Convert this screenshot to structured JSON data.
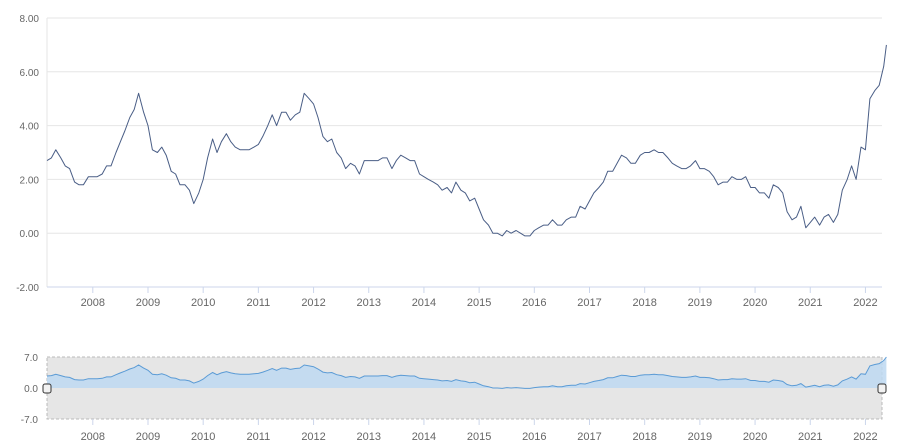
{
  "chart_data": [
    {
      "type": "line",
      "title": "",
      "xlabel": "",
      "ylabel": "",
      "ylim": [
        -2,
        8
      ],
      "grid": true,
      "color": "#4a5e86",
      "y_ticks": [
        "8.00",
        "6.00",
        "4.00",
        "2.00",
        "0.00",
        "-2.00"
      ],
      "y_tick_values": [
        8,
        6,
        4,
        2,
        0,
        -2
      ],
      "x_ticks": [
        "2008",
        "2009",
        "2010",
        "2011",
        "2012",
        "2013",
        "2014",
        "2015",
        "2016",
        "2017",
        "2018",
        "2019",
        "2020",
        "2021",
        "2022"
      ],
      "x_tick_values": [
        2008,
        2009,
        2010,
        2011,
        2012,
        2013,
        2014,
        2015,
        2016,
        2017,
        2018,
        2019,
        2020,
        2021,
        2022
      ],
      "xlim": [
        2007.17,
        2022.3
      ],
      "points": [
        [
          2007.17,
          2.7
        ],
        [
          2007.25,
          2.8
        ],
        [
          2007.33,
          3.1
        ],
        [
          2007.42,
          2.8
        ],
        [
          2007.5,
          2.5
        ],
        [
          2007.58,
          2.4
        ],
        [
          2007.67,
          1.9
        ],
        [
          2007.75,
          1.8
        ],
        [
          2007.83,
          1.8
        ],
        [
          2007.92,
          2.1
        ],
        [
          2008.0,
          2.1
        ],
        [
          2008.08,
          2.1
        ],
        [
          2008.17,
          2.2
        ],
        [
          2008.25,
          2.5
        ],
        [
          2008.33,
          2.5
        ],
        [
          2008.42,
          3.0
        ],
        [
          2008.5,
          3.4
        ],
        [
          2008.58,
          3.8
        ],
        [
          2008.67,
          4.3
        ],
        [
          2008.75,
          4.6
        ],
        [
          2008.83,
          5.2
        ],
        [
          2008.92,
          4.5
        ],
        [
          2009.0,
          4.0
        ],
        [
          2009.08,
          3.1
        ],
        [
          2009.17,
          3.0
        ],
        [
          2009.25,
          3.2
        ],
        [
          2009.33,
          2.9
        ],
        [
          2009.42,
          2.3
        ],
        [
          2009.5,
          2.2
        ],
        [
          2009.58,
          1.8
        ],
        [
          2009.67,
          1.8
        ],
        [
          2009.75,
          1.6
        ],
        [
          2009.83,
          1.1
        ],
        [
          2009.92,
          1.5
        ],
        [
          2010.0,
          2.0
        ],
        [
          2010.08,
          2.8
        ],
        [
          2010.17,
          3.5
        ],
        [
          2010.25,
          3.0
        ],
        [
          2010.33,
          3.4
        ],
        [
          2010.42,
          3.7
        ],
        [
          2010.5,
          3.4
        ],
        [
          2010.58,
          3.2
        ],
        [
          2010.67,
          3.1
        ],
        [
          2010.75,
          3.1
        ],
        [
          2010.83,
          3.1
        ],
        [
          2010.92,
          3.2
        ],
        [
          2011.0,
          3.3
        ],
        [
          2011.08,
          3.6
        ],
        [
          2011.17,
          4.0
        ],
        [
          2011.25,
          4.4
        ],
        [
          2011.33,
          4.0
        ],
        [
          2011.42,
          4.5
        ],
        [
          2011.5,
          4.5
        ],
        [
          2011.58,
          4.2
        ],
        [
          2011.67,
          4.4
        ],
        [
          2011.75,
          4.5
        ],
        [
          2011.83,
          5.2
        ],
        [
          2011.92,
          5.0
        ],
        [
          2012.0,
          4.8
        ],
        [
          2012.08,
          4.3
        ],
        [
          2012.17,
          3.6
        ],
        [
          2012.25,
          3.4
        ],
        [
          2012.33,
          3.5
        ],
        [
          2012.42,
          3.0
        ],
        [
          2012.5,
          2.8
        ],
        [
          2012.58,
          2.4
        ],
        [
          2012.67,
          2.6
        ],
        [
          2012.75,
          2.5
        ],
        [
          2012.83,
          2.2
        ],
        [
          2012.92,
          2.7
        ],
        [
          2013.0,
          2.7
        ],
        [
          2013.08,
          2.7
        ],
        [
          2013.17,
          2.7
        ],
        [
          2013.25,
          2.8
        ],
        [
          2013.33,
          2.8
        ],
        [
          2013.42,
          2.4
        ],
        [
          2013.5,
          2.7
        ],
        [
          2013.58,
          2.9
        ],
        [
          2013.67,
          2.8
        ],
        [
          2013.75,
          2.7
        ],
        [
          2013.83,
          2.7
        ],
        [
          2013.92,
          2.2
        ],
        [
          2014.0,
          2.1
        ],
        [
          2014.08,
          2.0
        ],
        [
          2014.17,
          1.9
        ],
        [
          2014.25,
          1.8
        ],
        [
          2014.33,
          1.6
        ],
        [
          2014.42,
          1.7
        ],
        [
          2014.5,
          1.5
        ],
        [
          2014.58,
          1.9
        ],
        [
          2014.67,
          1.6
        ],
        [
          2014.75,
          1.5
        ],
        [
          2014.83,
          1.2
        ],
        [
          2014.92,
          1.3
        ],
        [
          2015.0,
          0.9
        ],
        [
          2015.08,
          0.5
        ],
        [
          2015.17,
          0.3
        ],
        [
          2015.25,
          0.0
        ],
        [
          2015.33,
          0.0
        ],
        [
          2015.42,
          -0.1
        ],
        [
          2015.5,
          0.1
        ],
        [
          2015.58,
          0.0
        ],
        [
          2015.67,
          0.1
        ],
        [
          2015.75,
          0.0
        ],
        [
          2015.83,
          -0.1
        ],
        [
          2015.92,
          -0.1
        ],
        [
          2016.0,
          0.1
        ],
        [
          2016.08,
          0.2
        ],
        [
          2016.17,
          0.3
        ],
        [
          2016.25,
          0.3
        ],
        [
          2016.33,
          0.5
        ],
        [
          2016.42,
          0.3
        ],
        [
          2016.5,
          0.3
        ],
        [
          2016.58,
          0.5
        ],
        [
          2016.67,
          0.6
        ],
        [
          2016.75,
          0.6
        ],
        [
          2016.83,
          1.0
        ],
        [
          2016.92,
          0.9
        ],
        [
          2017.0,
          1.2
        ],
        [
          2017.08,
          1.5
        ],
        [
          2017.17,
          1.7
        ],
        [
          2017.25,
          1.9
        ],
        [
          2017.33,
          2.3
        ],
        [
          2017.42,
          2.3
        ],
        [
          2017.5,
          2.6
        ],
        [
          2017.58,
          2.9
        ],
        [
          2017.67,
          2.8
        ],
        [
          2017.75,
          2.6
        ],
        [
          2017.83,
          2.6
        ],
        [
          2017.92,
          2.9
        ],
        [
          2018.0,
          3.0
        ],
        [
          2018.08,
          3.0
        ],
        [
          2018.17,
          3.1
        ],
        [
          2018.25,
          3.0
        ],
        [
          2018.33,
          3.0
        ],
        [
          2018.42,
          2.8
        ],
        [
          2018.5,
          2.6
        ],
        [
          2018.58,
          2.5
        ],
        [
          2018.67,
          2.4
        ],
        [
          2018.75,
          2.4
        ],
        [
          2018.83,
          2.5
        ],
        [
          2018.92,
          2.7
        ],
        [
          2019.0,
          2.4
        ],
        [
          2019.08,
          2.4
        ],
        [
          2019.17,
          2.3
        ],
        [
          2019.25,
          2.1
        ],
        [
          2019.33,
          1.8
        ],
        [
          2019.42,
          1.9
        ],
        [
          2019.5,
          1.9
        ],
        [
          2019.58,
          2.1
        ],
        [
          2019.67,
          2.0
        ],
        [
          2019.75,
          2.0
        ],
        [
          2019.83,
          2.1
        ],
        [
          2019.92,
          1.7
        ],
        [
          2020.0,
          1.7
        ],
        [
          2020.08,
          1.5
        ],
        [
          2020.17,
          1.5
        ],
        [
          2020.25,
          1.3
        ],
        [
          2020.33,
          1.8
        ],
        [
          2020.42,
          1.7
        ],
        [
          2020.5,
          1.5
        ],
        [
          2020.58,
          0.8
        ],
        [
          2020.67,
          0.5
        ],
        [
          2020.75,
          0.6
        ],
        [
          2020.83,
          1.0
        ],
        [
          2020.92,
          0.2
        ],
        [
          2021.0,
          0.4
        ],
        [
          2021.08,
          0.6
        ],
        [
          2021.17,
          0.3
        ],
        [
          2021.25,
          0.6
        ],
        [
          2021.33,
          0.7
        ],
        [
          2021.42,
          0.4
        ],
        [
          2021.5,
          0.7
        ],
        [
          2021.58,
          1.6
        ],
        [
          2021.67,
          2.0
        ],
        [
          2021.75,
          2.5
        ],
        [
          2021.83,
          2.0
        ],
        [
          2021.92,
          3.2
        ],
        [
          2022.0,
          3.1
        ],
        [
          2022.08,
          5.0
        ],
        [
          2022.17,
          5.3
        ],
        [
          2022.25,
          5.5
        ],
        [
          2022.33,
          6.2
        ],
        [
          2022.38,
          7.0
        ]
      ]
    },
    {
      "type": "area",
      "title": "",
      "xlabel": "",
      "ylabel": "",
      "ylim": [
        -7,
        7
      ],
      "grid": false,
      "color": "#5b9bd5",
      "fill_color": "#bdd8f1",
      "mask_color": "#e6e6e6",
      "y_ticks": [
        "7.0",
        "0.0",
        "-7.0"
      ],
      "y_tick_values": [
        7,
        0,
        -7
      ],
      "x_ticks": [
        "2008",
        "2009",
        "2010",
        "2011",
        "2012",
        "2013",
        "2014",
        "2015",
        "2016",
        "2017",
        "2018",
        "2019",
        "2020",
        "2021",
        "2022"
      ],
      "x_tick_values": [
        2008,
        2009,
        2010,
        2011,
        2012,
        2013,
        2014,
        2015,
        2016,
        2017,
        2018,
        2019,
        2020,
        2021,
        2022
      ],
      "xlim": [
        2007.17,
        2022.3
      ],
      "same_points_as": 0
    }
  ]
}
